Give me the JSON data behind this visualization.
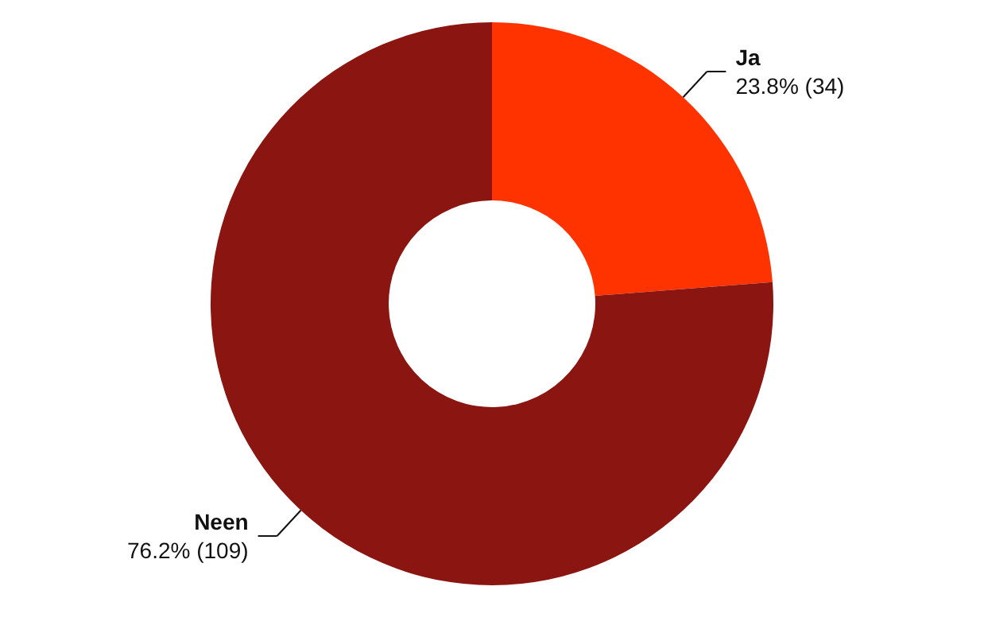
{
  "chart_data": {
    "type": "donut",
    "categories": [
      "Ja",
      "Neen"
    ],
    "values": [
      34,
      109
    ],
    "colors": [
      "#ff3300",
      "#8b1510"
    ],
    "value_labels": [
      "23.8% (34)",
      "76.2% (109)"
    ]
  }
}
